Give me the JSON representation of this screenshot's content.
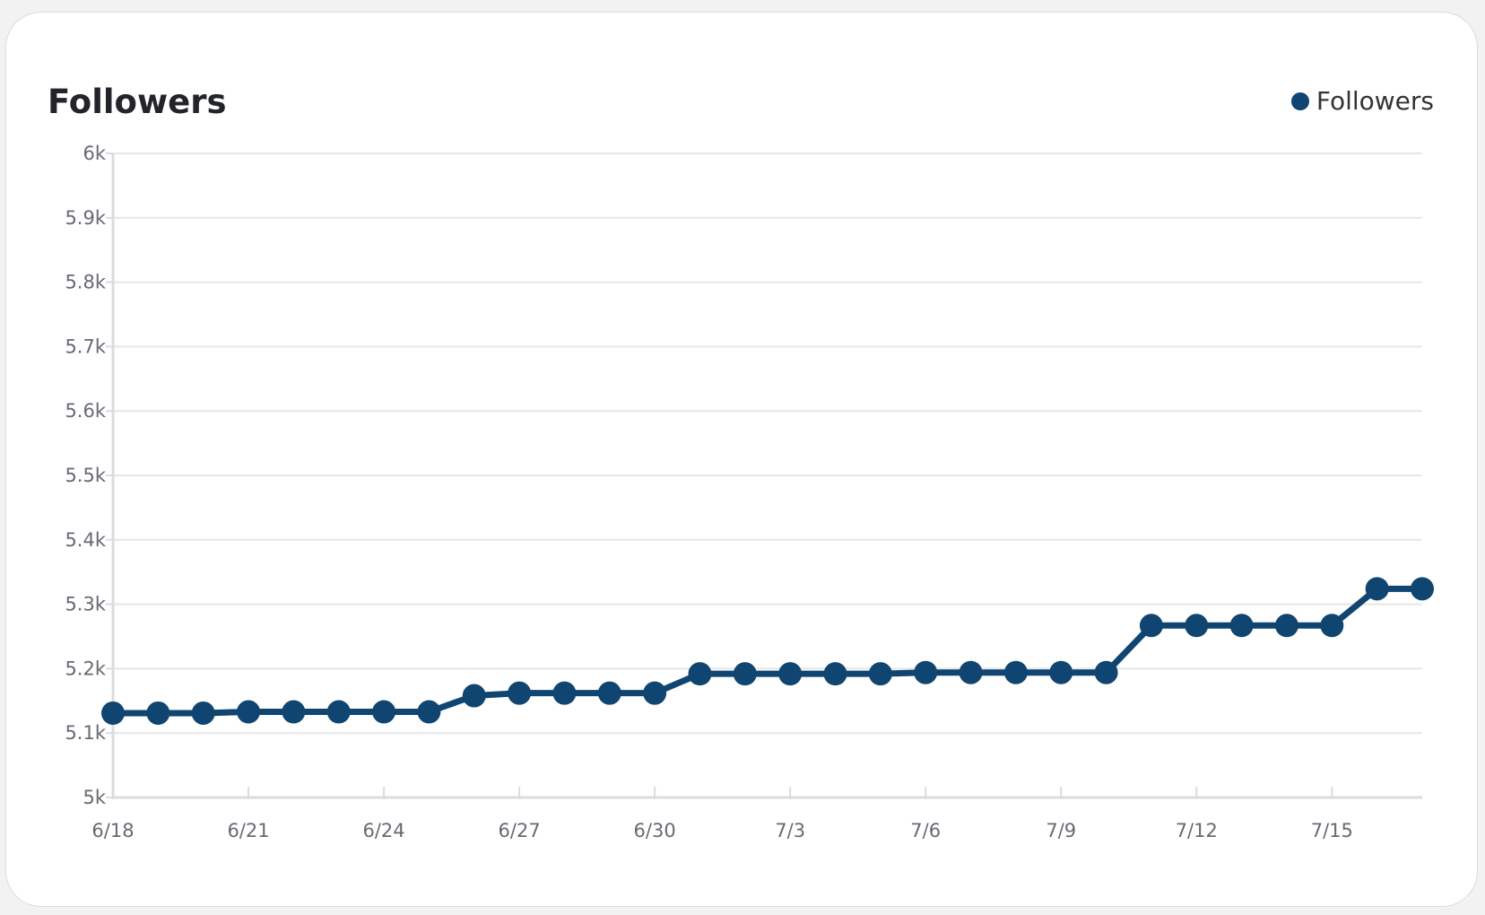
{
  "card": {
    "title": "Followers"
  },
  "chart_data": {
    "type": "line",
    "title": "Followers",
    "xlabel": "",
    "ylabel": "",
    "legend": {
      "placement": "top-right",
      "entries": [
        "Followers"
      ]
    },
    "grid": true,
    "ylim": [
      5000,
      6000
    ],
    "y_ticks": [
      {
        "value": 5000,
        "label": "5k"
      },
      {
        "value": 5100,
        "label": "5.1k"
      },
      {
        "value": 5200,
        "label": "5.2k"
      },
      {
        "value": 5300,
        "label": "5.3k"
      },
      {
        "value": 5400,
        "label": "5.4k"
      },
      {
        "value": 5500,
        "label": "5.5k"
      },
      {
        "value": 5600,
        "label": "5.6k"
      },
      {
        "value": 5700,
        "label": "5.7k"
      },
      {
        "value": 5800,
        "label": "5.8k"
      },
      {
        "value": 5900,
        "label": "5.9k"
      },
      {
        "value": 6000,
        "label": "6k"
      }
    ],
    "x_tick_labels": [
      "6/18",
      "6/21",
      "6/24",
      "6/27",
      "6/30",
      "7/3",
      "7/6",
      "7/9",
      "7/12",
      "7/15"
    ],
    "x_tick_every": 3,
    "x": [
      "6/18",
      "6/19",
      "6/20",
      "6/21",
      "6/22",
      "6/23",
      "6/24",
      "6/25",
      "6/26",
      "6/27",
      "6/28",
      "6/29",
      "6/30",
      "7/1",
      "7/2",
      "7/3",
      "7/4",
      "7/5",
      "7/6",
      "7/7",
      "7/8",
      "7/9",
      "7/10",
      "7/11",
      "7/12",
      "7/13",
      "7/14",
      "7/15",
      "7/16",
      "7/17"
    ],
    "series": [
      {
        "name": "Followers",
        "color": "#0f4570",
        "values": [
          5131,
          5131,
          5131,
          5133,
          5133,
          5133,
          5133,
          5133,
          5158,
          5162,
          5162,
          5162,
          5162,
          5192,
          5192,
          5192,
          5192,
          5192,
          5194,
          5194,
          5194,
          5194,
          5194,
          5267,
          5267,
          5267,
          5267,
          5267,
          5324,
          5324
        ]
      }
    ]
  }
}
